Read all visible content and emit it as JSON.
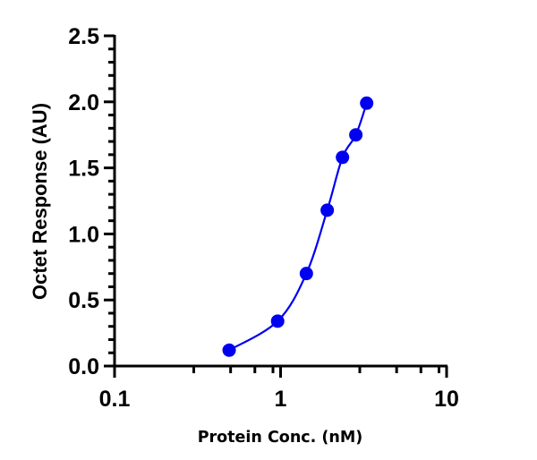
{
  "chart_data": {
    "type": "scatter",
    "title": "",
    "xlabel": "Protein Conc. (nM)",
    "ylabel": "Octet Response (AU)",
    "xscale": "log",
    "xlim": [
      0.1,
      10
    ],
    "ylim": [
      0.0,
      2.5
    ],
    "x_ticks": [
      0.1,
      1,
      10
    ],
    "x_tick_labels": [
      "0.1",
      "1",
      "10"
    ],
    "x_minor_ticks": [
      0.3,
      0.5,
      0.7,
      0.9,
      3,
      5,
      7,
      9
    ],
    "y_ticks": [
      0.0,
      0.5,
      1.0,
      1.5,
      2.0,
      2.5
    ],
    "y_tick_labels": [
      "0.0",
      "0.5",
      "1.0",
      "1.5",
      "2.0",
      "2.5"
    ],
    "y_minor_step": 0.1,
    "grid": false,
    "legend": null,
    "series": [
      {
        "name": "Octet Response",
        "color": "#0000f0",
        "marker": "circle",
        "x": [
          0.49,
          0.96,
          1.43,
          1.91,
          2.36,
          2.84,
          3.3
        ],
        "y": [
          0.12,
          0.34,
          0.7,
          1.18,
          1.58,
          1.75,
          1.99
        ],
        "fit_curve": "sigmoidal"
      }
    ]
  }
}
